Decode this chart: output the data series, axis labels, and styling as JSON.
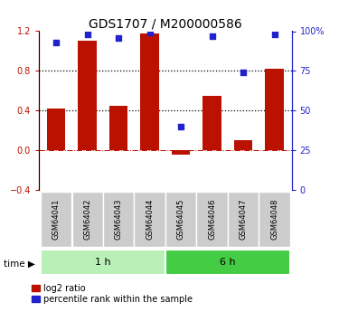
{
  "title": "GDS1707 / M200000586",
  "samples": [
    "GSM64041",
    "GSM64042",
    "GSM64043",
    "GSM64044",
    "GSM64045",
    "GSM64046",
    "GSM64047",
    "GSM64048"
  ],
  "log2_ratio": [
    0.42,
    1.1,
    0.45,
    1.18,
    -0.04,
    0.55,
    0.1,
    0.82
  ],
  "percentile_rank": [
    93,
    98,
    96,
    99,
    40,
    97,
    74,
    98
  ],
  "groups": [
    {
      "label": "1 h",
      "start": 0,
      "end": 4,
      "color": "#b8f0b8"
    },
    {
      "label": "6 h",
      "start": 4,
      "end": 8,
      "color": "#44cc44"
    }
  ],
  "bar_color": "#bb1100",
  "dot_color": "#2222cc",
  "ylim_left": [
    -0.4,
    1.2
  ],
  "ylim_right": [
    0,
    100
  ],
  "yticks_left": [
    -0.4,
    0.0,
    0.4,
    0.8,
    1.2
  ],
  "yticks_right": [
    0,
    25,
    50,
    75,
    100
  ],
  "hlines_dotted": [
    0.4,
    0.8
  ],
  "hline_dashdot": 0.0,
  "title_fontsize": 10,
  "tick_fontsize": 7,
  "legend_fontsize": 7,
  "sample_fontsize": 6,
  "group_fontsize": 8
}
